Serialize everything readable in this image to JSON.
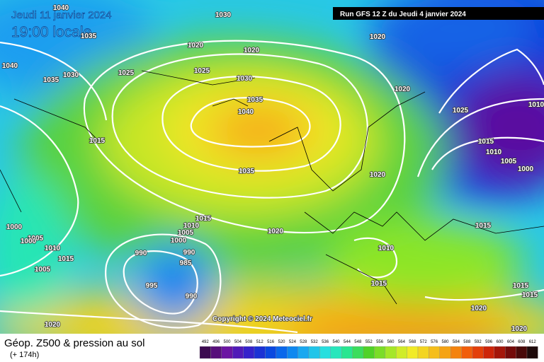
{
  "header": {
    "date": "Jeudi 11 janvier 2024",
    "time": "19:00 locale",
    "run": "Run GFS 12 Z du Jeudi 4 janvier 2024"
  },
  "copyright": "Copyright © 2024 Meteociel.fr",
  "footer": {
    "title": "Géop. Z500 & pression au sol",
    "subtitle": "(+ 174h)"
  },
  "legend": [
    492,
    496,
    500,
    504,
    508,
    512,
    516,
    520,
    524,
    528,
    532,
    536,
    540,
    544,
    548,
    552,
    556,
    560,
    564,
    568,
    572,
    576,
    580,
    584,
    588,
    592,
    596,
    600,
    604,
    608,
    612
  ],
  "isobars": [
    "1040",
    "1030",
    "1035",
    "1020",
    "1020",
    "1020",
    "1040",
    "1030",
    "1035",
    "1025",
    "1025",
    "1030",
    "1035",
    "1040",
    "1020",
    "1025",
    "1010",
    "1015",
    "1015",
    "1010",
    "1005",
    "1000",
    "1035",
    "1020",
    "1015",
    "1010",
    "1005",
    "1000",
    "1020",
    "1015",
    "1000",
    "1005",
    "1000",
    "1010",
    "1015",
    "990",
    "990",
    "985",
    "1010",
    "1005",
    "995",
    "1015",
    "1015",
    "1015",
    "990",
    "1020",
    "1020",
    "1020"
  ]
}
